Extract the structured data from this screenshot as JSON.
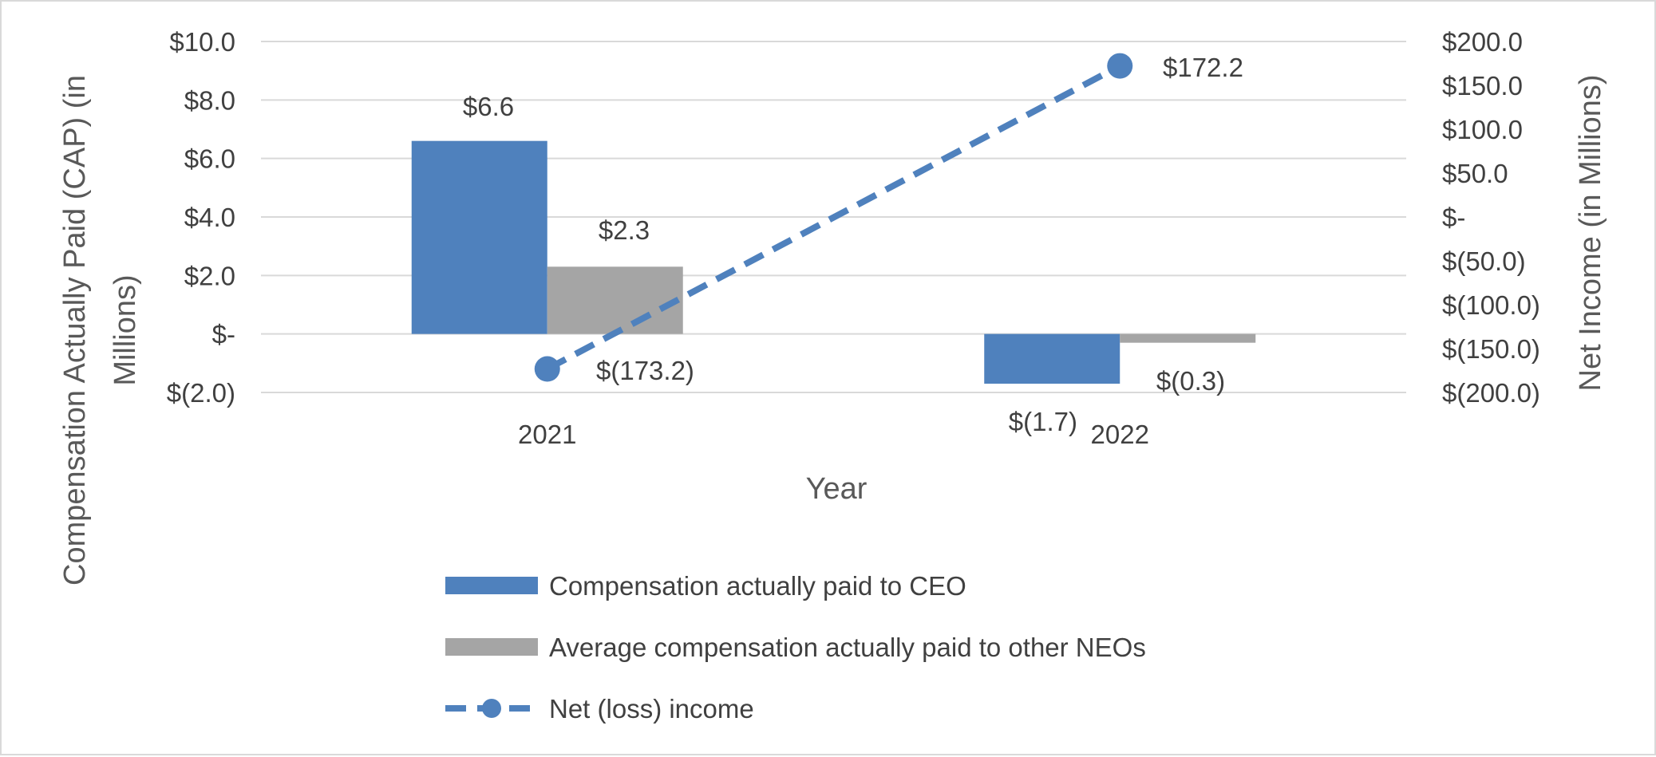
{
  "chart_data": {
    "type": "bar",
    "categories": [
      "2021",
      "2022"
    ],
    "xlabel": "Year",
    "ylabel": "Compensation Actually Paid (CAP) (in Millions)",
    "ylabel_lines": [
      "Compensation Actually Paid (CAP) (in",
      "Millions)"
    ],
    "y2label": "Net Income (in Millions)",
    "ylim": [
      -2,
      10
    ],
    "y2lim": [
      -200,
      200
    ],
    "y_ticks": [
      {
        "value": 10,
        "label": "$10.0"
      },
      {
        "value": 8,
        "label": "$8.0"
      },
      {
        "value": 6,
        "label": "$6.0"
      },
      {
        "value": 4,
        "label": "$4.0"
      },
      {
        "value": 2,
        "label": "$2.0"
      },
      {
        "value": 0,
        "label": "$-"
      },
      {
        "value": -2,
        "label": "$(2.0)"
      }
    ],
    "y2_ticks": [
      {
        "value": 200,
        "label": "$200.0"
      },
      {
        "value": 150,
        "label": "$150.0"
      },
      {
        "value": 100,
        "label": "$100.0"
      },
      {
        "value": 50,
        "label": "$50.0"
      },
      {
        "value": 0,
        "label": "$-"
      },
      {
        "value": -50,
        "label": "$(50.0)"
      },
      {
        "value": -100,
        "label": "$(100.0)"
      },
      {
        "value": -150,
        "label": "$(150.0)"
      },
      {
        "value": -200,
        "label": "$(200.0)"
      }
    ],
    "grid": true,
    "legend_position": "bottom",
    "series": [
      {
        "name": "Compensation actually paid to CEO",
        "type": "bar",
        "axis": "left",
        "color": "#4f81bd",
        "values": [
          6.6,
          -1.7
        ],
        "labels": [
          "$6.6",
          "$(1.7)"
        ]
      },
      {
        "name": "Average compensation actually paid to other NEOs",
        "type": "bar",
        "axis": "left",
        "color": "#a5a5a5",
        "values": [
          2.3,
          -0.3
        ],
        "labels": [
          "$2.3",
          "$(0.3)"
        ]
      },
      {
        "name": "Net (loss) income",
        "type": "line",
        "style": "dashed",
        "marker": "circle",
        "axis": "right",
        "color": "#4f81bd",
        "values": [
          -173.2,
          172.2
        ],
        "labels": [
          "$(173.2)",
          "$172.2"
        ]
      }
    ]
  }
}
